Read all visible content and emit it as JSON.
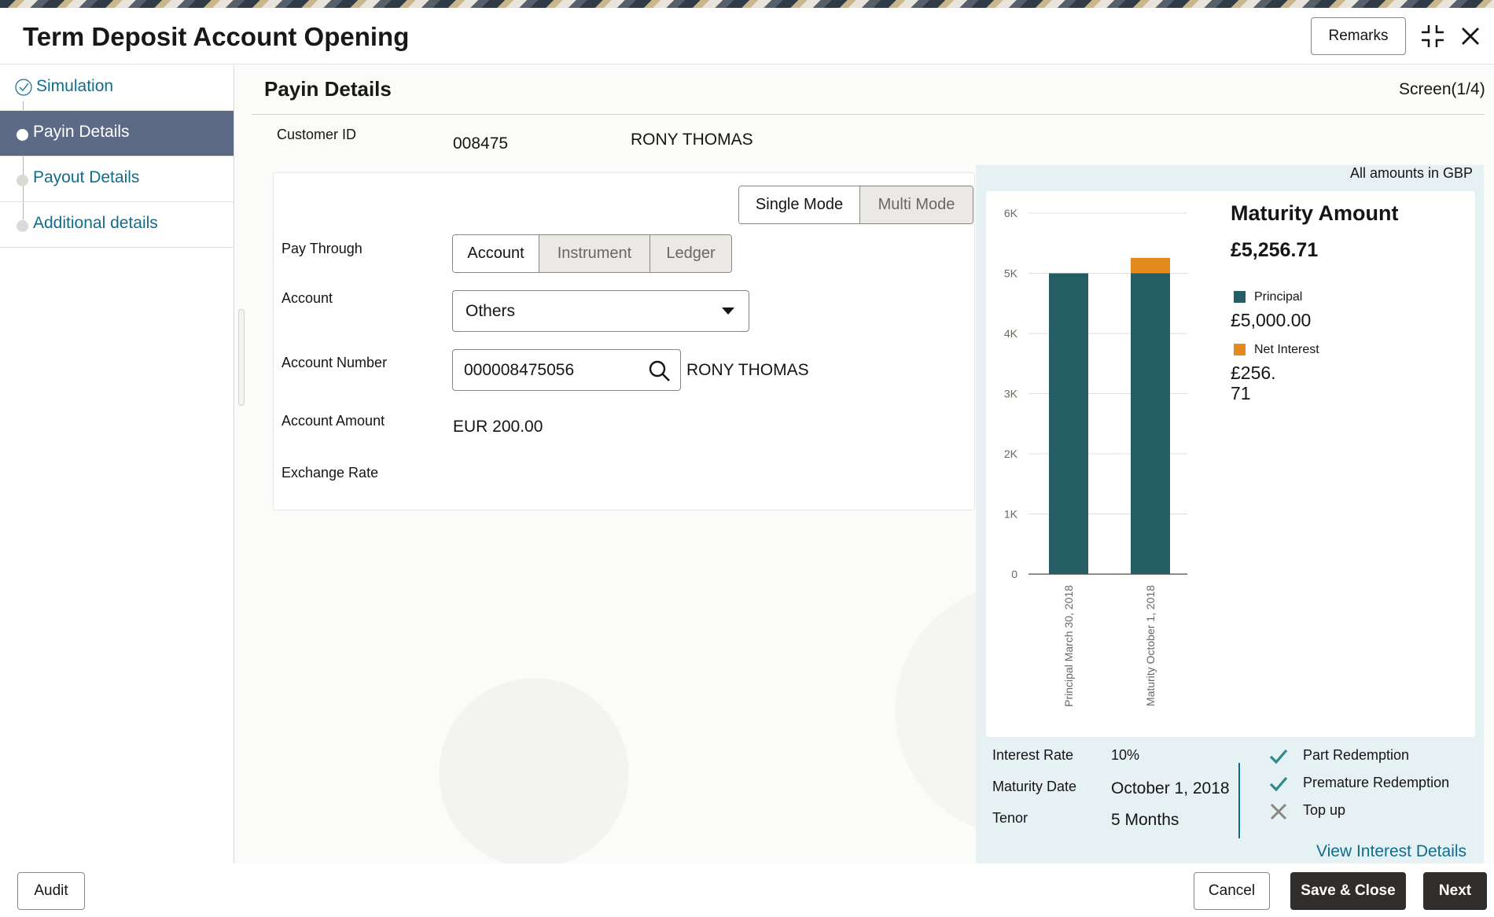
{
  "header": {
    "title": "Term Deposit Account Opening",
    "remarks_label": "Remarks"
  },
  "sidebar": {
    "steps": [
      {
        "label": "Simulation",
        "state": "completed"
      },
      {
        "label": "Payin Details",
        "state": "active"
      },
      {
        "label": "Payout Details",
        "state": "pending"
      },
      {
        "label": "Additional details",
        "state": "pending"
      }
    ]
  },
  "section": {
    "title": "Payin Details",
    "screen_indicator": "Screen(1/4)"
  },
  "customer": {
    "id_label": "Customer ID",
    "id_value": "008475",
    "name": "RONY THOMAS"
  },
  "mode_toggle": {
    "options": [
      "Single Mode",
      "Multi Mode"
    ],
    "selected": "Single Mode"
  },
  "form": {
    "pay_through_label": "Pay Through",
    "pay_through_options": [
      "Account",
      "Instrument",
      "Ledger"
    ],
    "pay_through_selected": "Account",
    "account_label": "Account",
    "account_value": "Others",
    "account_number_label": "Account Number",
    "account_number_value": "000008475056",
    "account_holder": "RONY THOMAS",
    "account_amount_label": "Account Amount",
    "account_amount_value": "EUR 200.00",
    "exchange_rate_label": "Exchange Rate"
  },
  "summary": {
    "amounts_note": "All amounts in GBP",
    "maturity_title": "Maturity Amount",
    "maturity_value": "£5,256.71",
    "legend": [
      {
        "label": "Principal",
        "value": "£5,000.00",
        "color": "#245d63"
      },
      {
        "label": "Net Interest",
        "value": "£256.71",
        "color": "#e58a1f"
      }
    ],
    "details": {
      "interest_rate_label": "Interest Rate",
      "interest_rate_value": "10%",
      "maturity_date_label": "Maturity Date",
      "maturity_date_value": "October 1, 2018",
      "tenor_label": "Tenor",
      "tenor_value": "5 Months"
    },
    "features": [
      {
        "label": "Part Redemption",
        "enabled": true,
        "icon": "check-icon"
      },
      {
        "label": "Premature Redemption",
        "enabled": true,
        "icon": "check-icon"
      },
      {
        "label": "Top up",
        "enabled": false,
        "icon": "cross-icon"
      }
    ],
    "view_interest_link": "View Interest Details"
  },
  "chart_data": {
    "type": "bar",
    "stacked": true,
    "categories": [
      "Principal March 30, 2018",
      "Maturity October 1, 2018"
    ],
    "series": [
      {
        "name": "Principal",
        "values": [
          5000,
          5000
        ],
        "color": "#245d63"
      },
      {
        "name": "Net Interest",
        "values": [
          0,
          256.71
        ],
        "color": "#e58a1f"
      }
    ],
    "ylim": [
      0,
      6000
    ],
    "yticks": [
      "0",
      "1K",
      "2K",
      "3K",
      "4K",
      "5K",
      "6K"
    ],
    "grid": true,
    "legend": "right"
  },
  "footer": {
    "audit_label": "Audit",
    "cancel_label": "Cancel",
    "save_close_label": "Save & Close",
    "next_label": "Next"
  }
}
